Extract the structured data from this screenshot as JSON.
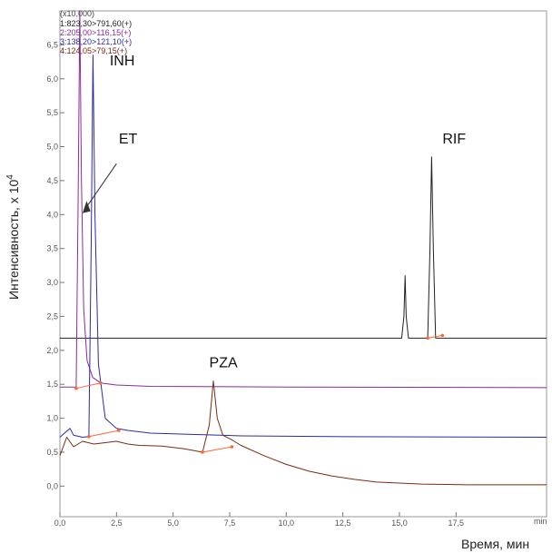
{
  "chart_data": {
    "type": "line",
    "title": "",
    "multiplier_label": "(x10,000)",
    "xlabel": "Время, мин",
    "x_unit": "min",
    "ylabel": "Интенсивность, х 10",
    "ylabel_exponent": "4",
    "xlim": [
      0,
      21.5
    ],
    "ylim": [
      -0.45,
      7.0
    ],
    "x_ticks": [
      0.0,
      2.5,
      5.0,
      7.5,
      10.0,
      12.5,
      15.0,
      17.5
    ],
    "x_tick_labels": [
      "0,0",
      "2,5",
      "5,0",
      "7,5",
      "10,0",
      "12,5",
      "15,0",
      "17,5"
    ],
    "y_ticks": [
      0.0,
      0.5,
      1.0,
      1.5,
      2.0,
      2.5,
      3.0,
      3.5,
      4.0,
      4.5,
      5.0,
      5.5,
      6.0,
      6.5
    ],
    "y_tick_labels": [
      "0,0",
      "0,5",
      "1,0",
      "1,5",
      "2,0",
      "2,5",
      "3,0",
      "3,5",
      "4,0",
      "4,5",
      "5,0",
      "5,5",
      "6,0",
      "6,5"
    ],
    "grid": false,
    "legend_position": "top-left",
    "series": [
      {
        "name": "1:823,30>791,60(+)",
        "color": "#222222",
        "points": [
          [
            0,
            2.18
          ],
          [
            15.1,
            2.18
          ],
          [
            15.2,
            2.5
          ],
          [
            15.25,
            3.1
          ],
          [
            15.3,
            2.5
          ],
          [
            15.4,
            2.18
          ],
          [
            16.25,
            2.18
          ],
          [
            16.35,
            3.5
          ],
          [
            16.42,
            4.85
          ],
          [
            16.5,
            3.5
          ],
          [
            16.6,
            2.18
          ],
          [
            21.5,
            2.18
          ]
        ]
      },
      {
        "name": "2:205,00>116,15(+)",
        "color": "#8a2a9a",
        "points": [
          [
            0,
            1.46
          ],
          [
            0.72,
            1.46
          ],
          [
            0.8,
            4.0
          ],
          [
            0.88,
            7.0
          ],
          [
            0.95,
            4.5
          ],
          [
            1.05,
            2.6
          ],
          [
            1.2,
            1.85
          ],
          [
            1.45,
            1.6
          ],
          [
            1.8,
            1.52
          ],
          [
            2.5,
            1.49
          ],
          [
            4.0,
            1.47
          ],
          [
            10.0,
            1.46
          ],
          [
            21.5,
            1.45
          ]
        ]
      },
      {
        "name": "3:138,20>121,10(+)",
        "color": "#2a2aa8",
        "points": [
          [
            0,
            0.72
          ],
          [
            0.2,
            0.78
          ],
          [
            0.45,
            0.85
          ],
          [
            0.6,
            0.75
          ],
          [
            1.0,
            0.72
          ],
          [
            1.28,
            0.73
          ],
          [
            1.38,
            3.5
          ],
          [
            1.46,
            6.35
          ],
          [
            1.55,
            4.0
          ],
          [
            1.7,
            1.8
          ],
          [
            2.0,
            1.0
          ],
          [
            2.5,
            0.85
          ],
          [
            3.0,
            0.82
          ],
          [
            4.0,
            0.78
          ],
          [
            6.0,
            0.76
          ],
          [
            8.0,
            0.74
          ],
          [
            12.0,
            0.73
          ],
          [
            21.5,
            0.72
          ]
        ]
      },
      {
        "name": "4:124,05>79,15(+)",
        "color": "#7a2a16",
        "points": [
          [
            0,
            0.45
          ],
          [
            0.3,
            0.72
          ],
          [
            0.6,
            0.58
          ],
          [
            1.0,
            0.66
          ],
          [
            1.5,
            0.62
          ],
          [
            2.0,
            0.64
          ],
          [
            2.5,
            0.66
          ],
          [
            3.0,
            0.62
          ],
          [
            3.5,
            0.6
          ],
          [
            4.5,
            0.59
          ],
          [
            5.5,
            0.55
          ],
          [
            6.3,
            0.5
          ],
          [
            6.6,
            0.9
          ],
          [
            6.78,
            1.55
          ],
          [
            6.95,
            1.0
          ],
          [
            7.2,
            0.75
          ],
          [
            7.6,
            0.68
          ],
          [
            8.0,
            0.6
          ],
          [
            9.0,
            0.45
          ],
          [
            10.0,
            0.32
          ],
          [
            11.0,
            0.22
          ],
          [
            12.0,
            0.15
          ],
          [
            13.0,
            0.1
          ],
          [
            14.0,
            0.06
          ],
          [
            16.0,
            0.03
          ],
          [
            18.0,
            0.02
          ],
          [
            21.5,
            0.02
          ]
        ]
      }
    ],
    "annotations": [
      {
        "text": "INH",
        "x": 2.2,
        "y": 6.2
      },
      {
        "text": "ET",
        "x": 2.6,
        "y": 5.05
      },
      {
        "text": "RIF",
        "x": 16.9,
        "y": 5.05
      },
      {
        "text": "PZA",
        "x": 6.6,
        "y": 1.75
      }
    ],
    "baseline_color": "#ff6633"
  }
}
